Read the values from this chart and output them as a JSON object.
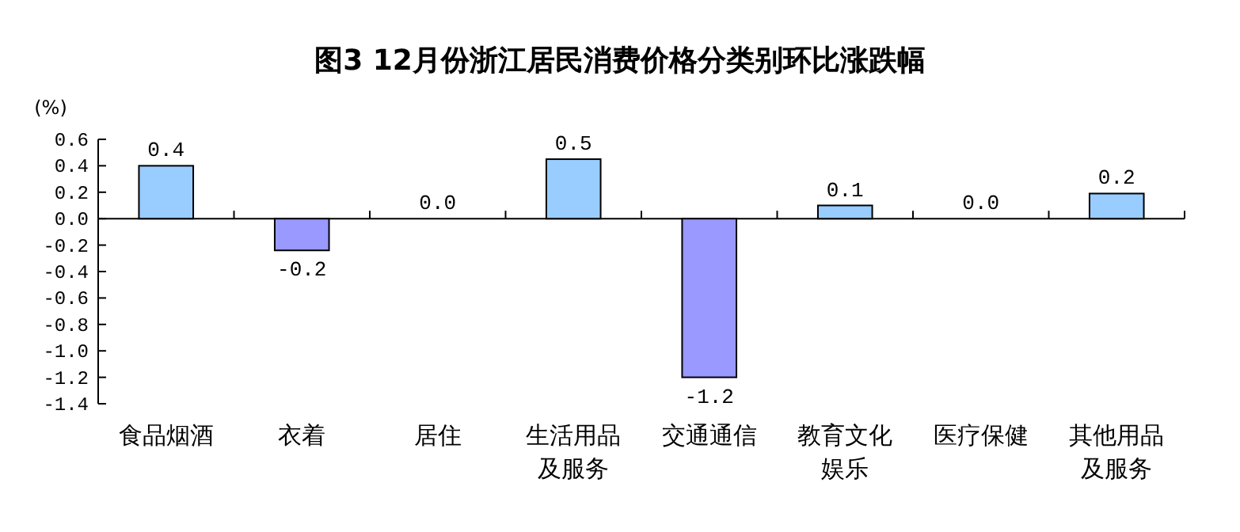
{
  "chart_data": {
    "type": "bar",
    "title": "图3 12月份浙江居民消费价格分类别环比涨跌幅",
    "ylabel": "(%)",
    "categories": [
      "食品烟酒",
      "衣着",
      "居住",
      "生活用品及服务",
      "交通通信",
      "教育文化娱乐",
      "医疗保健",
      "其他用品及服务"
    ],
    "values": [
      0.4,
      -0.24,
      0,
      0.45,
      -1.2,
      0.1,
      0,
      0.19
    ],
    "value_labels": [
      "0.4",
      "-0.2",
      "0.0",
      "0.5",
      "-1.2",
      "0.1",
      "0.0",
      "0.2"
    ],
    "colors": [
      "#99ccff",
      "#9999ff",
      "#99ccff",
      "#99ccff",
      "#9999ff",
      "#99ccff",
      "#99ccff",
      "#99ccff"
    ],
    "ylim": [
      -1.4,
      0.6
    ],
    "yticks": [
      0.6,
      0.4,
      0.2,
      {
        "value": 0,
        "label": "0.0"
      },
      -0.2,
      -0.4,
      -0.6,
      -0.8,
      {
        "value": -1,
        "label": "-1.0"
      },
      -1.2,
      -1.4
    ]
  }
}
